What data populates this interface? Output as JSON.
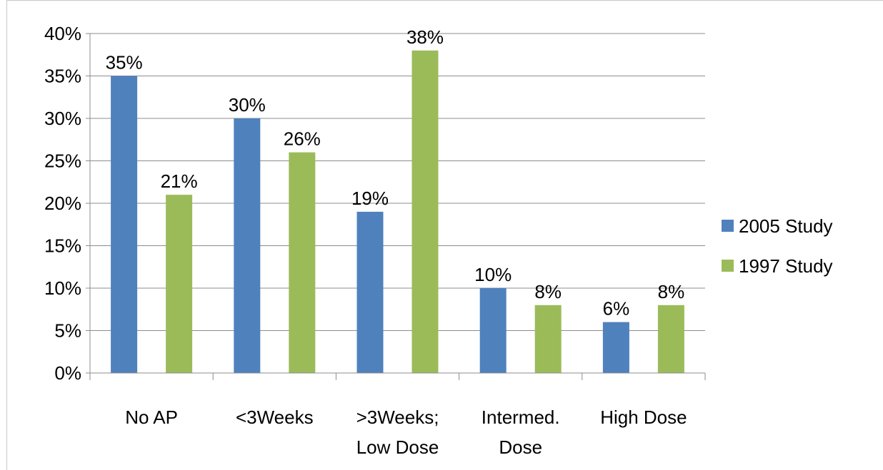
{
  "chart_data": {
    "type": "bar",
    "title": "",
    "xlabel": "",
    "ylabel": "",
    "ylim": [
      0,
      0.4
    ],
    "yticks": [
      0,
      0.05,
      0.1,
      0.15,
      0.2,
      0.25,
      0.3,
      0.35,
      0.4
    ],
    "ytick_labels": [
      "0%",
      "5%",
      "10%",
      "15%",
      "20%",
      "25%",
      "30%",
      "35%",
      "40%"
    ],
    "grid": true,
    "legend_position": "right",
    "categories": [
      [
        "No AP"
      ],
      [
        "<3Weeks"
      ],
      [
        ">3Weeks;",
        "Low Dose"
      ],
      [
        "Intermed.",
        "Dose"
      ],
      [
        "High Dose"
      ]
    ],
    "series": [
      {
        "name": "2005 Study",
        "color": "#4f81bd",
        "values": [
          0.35,
          0.3,
          0.19,
          0.1,
          0.06
        ],
        "labels": [
          "35%",
          "30%",
          "19%",
          "10%",
          "6%"
        ]
      },
      {
        "name": "1997 Study",
        "color": "#9bbb59",
        "values": [
          0.21,
          0.26,
          0.38,
          0.08,
          0.08
        ],
        "labels": [
          "21%",
          "26%",
          "38%",
          "8%",
          "8%"
        ]
      }
    ]
  }
}
